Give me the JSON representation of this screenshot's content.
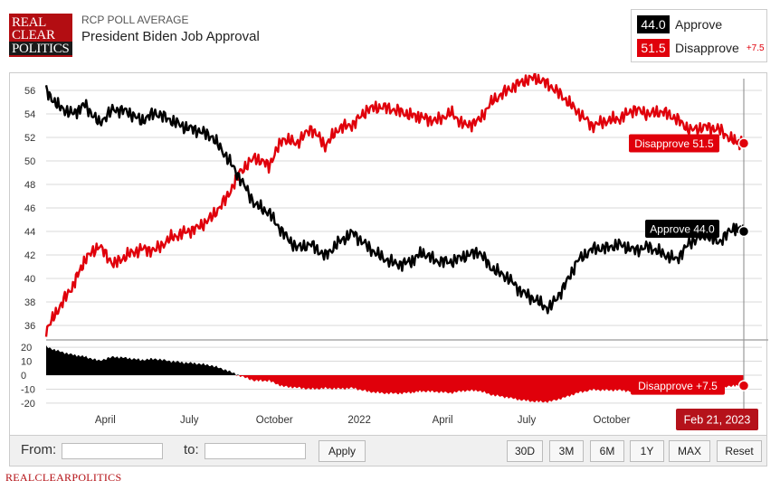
{
  "header": {
    "logo_lines": [
      "REAL",
      "CLEAR",
      "POLITICS"
    ],
    "subtitle": "RCP POLL AVERAGE",
    "title": "President Biden Job Approval"
  },
  "legend": {
    "approve_value": "44.0",
    "approve_label": "Approve",
    "disapprove_value": "51.5",
    "disapprove_label": "Disapprove",
    "spread": "+7.5"
  },
  "colors": {
    "approve": "#000000",
    "disapprove": "#e0000b",
    "grid": "#d9d9d9"
  },
  "controls": {
    "from_label": "From:",
    "to_label": "to:",
    "apply_label": "Apply",
    "ranges": [
      "30D",
      "3M",
      "6M",
      "1Y",
      "MAX",
      "Reset"
    ]
  },
  "footer": {
    "text": "REALCLEARPOLITICS"
  },
  "chart_data": {
    "type": "line",
    "x_start": "2021-01-27",
    "x_end": "2023-02-21",
    "x_ticks": [
      "April",
      "July",
      "October",
      "2022",
      "April",
      "July",
      "October"
    ],
    "x_tick_dates": [
      "2021-04-01",
      "2021-07-01",
      "2021-10-01",
      "2022-01-01",
      "2022-04-01",
      "2022-07-01",
      "2022-10-01"
    ],
    "main": {
      "ylim": [
        35,
        57
      ],
      "yticks": [
        36,
        38,
        40,
        42,
        44,
        46,
        48,
        50,
        52,
        54,
        56
      ]
    },
    "spread_panel": {
      "ylim": [
        -22,
        22
      ],
      "yticks": [
        20,
        10,
        0,
        -10,
        -20
      ]
    },
    "series": [
      {
        "name": "Approve",
        "color": "#000000",
        "points": [
          [
            "2021-01-27",
            55.9
          ],
          [
            "2021-02-10",
            54.6
          ],
          [
            "2021-02-25",
            54.0
          ],
          [
            "2021-03-10",
            54.8
          ],
          [
            "2021-03-25",
            53.2
          ],
          [
            "2021-04-10",
            54.4
          ],
          [
            "2021-04-25",
            54.2
          ],
          [
            "2021-05-10",
            53.4
          ],
          [
            "2021-05-25",
            54.1
          ],
          [
            "2021-06-10",
            53.5
          ],
          [
            "2021-06-25",
            52.9
          ],
          [
            "2021-07-10",
            52.6
          ],
          [
            "2021-07-25",
            52.1
          ],
          [
            "2021-08-10",
            50.4
          ],
          [
            "2021-08-25",
            48.5
          ],
          [
            "2021-09-10",
            46.3
          ],
          [
            "2021-09-25",
            45.6
          ],
          [
            "2021-10-10",
            43.9
          ],
          [
            "2021-10-25",
            42.6
          ],
          [
            "2021-11-10",
            42.9
          ],
          [
            "2021-11-25",
            41.9
          ],
          [
            "2021-12-10",
            43.1
          ],
          [
            "2021-12-25",
            43.9
          ],
          [
            "2022-01-10",
            42.7
          ],
          [
            "2022-01-25",
            41.8
          ],
          [
            "2022-02-10",
            41.2
          ],
          [
            "2022-02-25",
            41.4
          ],
          [
            "2022-03-10",
            42.2
          ],
          [
            "2022-03-25",
            41.5
          ],
          [
            "2022-04-10",
            41.4
          ],
          [
            "2022-04-25",
            41.9
          ],
          [
            "2022-05-10",
            42.3
          ],
          [
            "2022-05-25",
            40.8
          ],
          [
            "2022-06-10",
            40.1
          ],
          [
            "2022-06-25",
            38.9
          ],
          [
            "2022-07-10",
            38.2
          ],
          [
            "2022-07-25",
            37.4
          ],
          [
            "2022-08-10",
            39.2
          ],
          [
            "2022-08-25",
            41.5
          ],
          [
            "2022-09-10",
            42.5
          ],
          [
            "2022-09-25",
            42.6
          ],
          [
            "2022-10-10",
            42.9
          ],
          [
            "2022-10-25",
            42.4
          ],
          [
            "2022-11-10",
            42.7
          ],
          [
            "2022-11-25",
            42.1
          ],
          [
            "2022-12-10",
            41.6
          ],
          [
            "2022-12-25",
            43.1
          ],
          [
            "2023-01-10",
            43.7
          ],
          [
            "2023-01-25",
            43.1
          ],
          [
            "2023-02-10",
            44.3
          ],
          [
            "2023-02-21",
            44.0
          ]
        ]
      },
      {
        "name": "Disapprove",
        "color": "#e0000b",
        "points": [
          [
            "2021-01-27",
            35.6
          ],
          [
            "2021-02-10",
            37.5
          ],
          [
            "2021-02-25",
            39.4
          ],
          [
            "2021-03-10",
            41.6
          ],
          [
            "2021-03-25",
            42.8
          ],
          [
            "2021-04-10",
            41.2
          ],
          [
            "2021-04-25",
            42.0
          ],
          [
            "2021-05-10",
            42.5
          ],
          [
            "2021-05-25",
            42.4
          ],
          [
            "2021-06-10",
            43.4
          ],
          [
            "2021-06-25",
            43.9
          ],
          [
            "2021-07-10",
            44.3
          ],
          [
            "2021-07-25",
            45.2
          ],
          [
            "2021-08-10",
            46.8
          ],
          [
            "2021-08-25",
            49.1
          ],
          [
            "2021-09-10",
            50.3
          ],
          [
            "2021-09-25",
            49.6
          ],
          [
            "2021-10-10",
            51.9
          ],
          [
            "2021-10-25",
            51.5
          ],
          [
            "2021-11-10",
            52.8
          ],
          [
            "2021-11-25",
            51.3
          ],
          [
            "2021-12-10",
            52.8
          ],
          [
            "2021-12-25",
            53.1
          ],
          [
            "2022-01-10",
            54.4
          ],
          [
            "2022-01-25",
            54.6
          ],
          [
            "2022-02-10",
            54.3
          ],
          [
            "2022-02-25",
            53.9
          ],
          [
            "2022-03-10",
            53.7
          ],
          [
            "2022-03-25",
            53.4
          ],
          [
            "2022-04-10",
            54.1
          ],
          [
            "2022-04-25",
            53.0
          ],
          [
            "2022-05-10",
            53.4
          ],
          [
            "2022-05-25",
            55.1
          ],
          [
            "2022-06-10",
            56.0
          ],
          [
            "2022-06-25",
            56.7
          ],
          [
            "2022-07-10",
            57.1
          ],
          [
            "2022-07-25",
            56.5
          ],
          [
            "2022-08-10",
            55.4
          ],
          [
            "2022-08-25",
            54.2
          ],
          [
            "2022-09-10",
            53.0
          ],
          [
            "2022-09-25",
            53.4
          ],
          [
            "2022-10-10",
            53.6
          ],
          [
            "2022-10-25",
            54.4
          ],
          [
            "2022-11-10",
            54.0
          ],
          [
            "2022-11-25",
            54.2
          ],
          [
            "2022-12-10",
            53.6
          ],
          [
            "2022-12-25",
            52.6
          ],
          [
            "2023-01-10",
            52.9
          ],
          [
            "2023-01-25",
            52.7
          ],
          [
            "2023-02-10",
            51.7
          ],
          [
            "2023-02-21",
            51.5
          ]
        ]
      }
    ],
    "flags": {
      "disapprove_label": "Disapprove 51.5",
      "approve_label": "Approve 44.0",
      "spread_label": "Disapprove +7.5",
      "date_label": "Feb 21, 2023"
    }
  }
}
